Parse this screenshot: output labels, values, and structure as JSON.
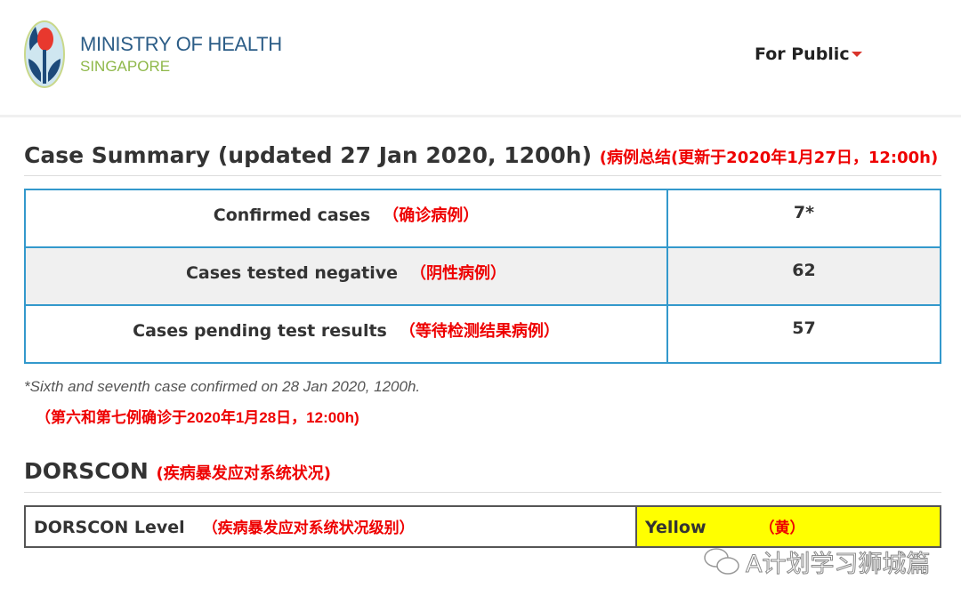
{
  "header": {
    "logo_line1": "MINISTRY OF HEALTH",
    "logo_line2": "SINGAPORE",
    "menu_label": "For Public"
  },
  "case_summary": {
    "title": "Case Summary (updated 27 Jan 2020, 1200h)",
    "title_cn": "(病例总结(更新于2020年1月27日，12:00h)",
    "rows": [
      {
        "label": "Confirmed cases",
        "label_cn": "（确诊病例）",
        "value": "7*"
      },
      {
        "label": "Cases tested negative",
        "label_cn": "（阴性病例）",
        "value": "62"
      },
      {
        "label": "Cases pending test results",
        "label_cn": "（等待检测结果病例）",
        "value": "57"
      }
    ],
    "footnote": "*Sixth and seventh case confirmed on 28 Jan 2020, 1200h.",
    "footnote_cn": "（第六和第七例确诊于2020年1月28日，12:00h)"
  },
  "dorscon": {
    "title": "DORSCON",
    "title_cn": "(疾病暴发应对系统状况)",
    "label": "DORSCON Level",
    "label_cn": "（疾病暴发应对系统状况级别）",
    "value": "Yellow",
    "value_cn": "（黄）",
    "value_color": "#ffff00"
  },
  "watermark": "A计划学习狮城篇"
}
